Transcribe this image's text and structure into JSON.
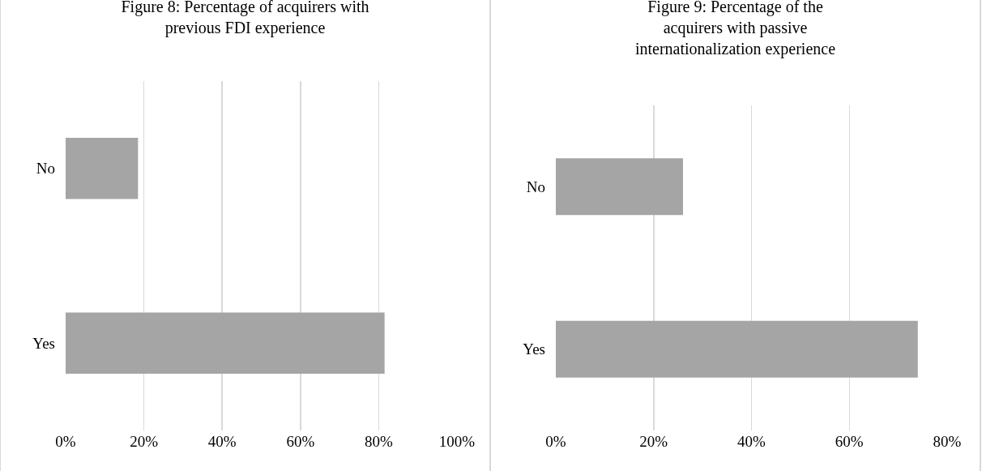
{
  "chart_data": [
    {
      "type": "bar",
      "orientation": "horizontal",
      "title": "Figure 8: Percentage of acquirers with previous FDI experience",
      "categories": [
        "No",
        "Yes"
      ],
      "values": [
        18.5,
        81.5
      ],
      "color": "#a5a5a5",
      "xlim": [
        0,
        100
      ],
      "xticks": [
        {
          "value": 0,
          "label": "0%"
        },
        {
          "value": 20,
          "label": "20%"
        },
        {
          "value": 40,
          "label": "40%"
        },
        {
          "value": 60,
          "label": "60%"
        },
        {
          "value": 80,
          "label": "80%"
        },
        {
          "value": 100,
          "label": "100%"
        }
      ],
      "grid": "x"
    },
    {
      "type": "bar",
      "orientation": "horizontal",
      "title": "Figure 9: Percentage of the acquirers with passive internationalization experience",
      "categories": [
        "No",
        "Yes"
      ],
      "values": [
        26,
        74
      ],
      "color": "#a5a5a5",
      "xlim": [
        0,
        80
      ],
      "xticks": [
        {
          "value": 0,
          "label": "0%"
        },
        {
          "value": 20,
          "label": "20%"
        },
        {
          "value": 40,
          "label": "40%"
        },
        {
          "value": 60,
          "label": "60%"
        },
        {
          "value": 80,
          "label": "80%"
        }
      ],
      "grid": "x"
    }
  ]
}
